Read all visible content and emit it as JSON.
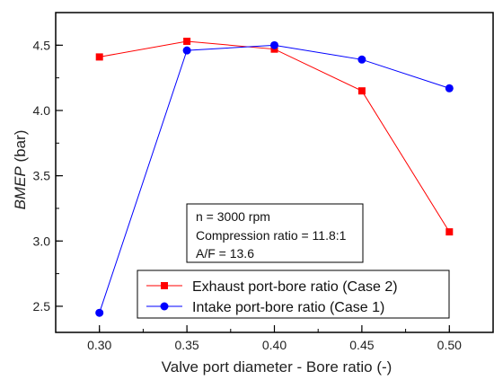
{
  "chart_data": {
    "type": "line",
    "xlabel": "Valve port diameter - Bore ratio (-)",
    "ylabel_italic": "BMEP",
    "ylabel_unit": " (bar)",
    "xlim": [
      0.275,
      0.525
    ],
    "ylim": [
      2.3,
      4.75
    ],
    "x_ticks": [
      0.3,
      0.35,
      0.4,
      0.45,
      0.5
    ],
    "x_tick_labels": [
      "0.30",
      "0.35",
      "0.40",
      "0.45",
      "0.50"
    ],
    "y_ticks": [
      2.5,
      3.0,
      3.5,
      4.0,
      4.5
    ],
    "y_tick_labels": [
      "2.5",
      "3.0",
      "3.5",
      "4.0",
      "4.5"
    ],
    "grid": false,
    "legend_position": "bottom-right",
    "annotation": [
      "n = 3000 rpm",
      "Compression ratio = 11.8:1",
      "A/F = 13.6"
    ],
    "series": [
      {
        "name": "Exhaust port-bore ratio (Case 2)",
        "color": "#ff0000",
        "marker": "square",
        "x": [
          0.3,
          0.35,
          0.4,
          0.45,
          0.5
        ],
        "y": [
          4.41,
          4.53,
          4.47,
          4.15,
          3.07
        ]
      },
      {
        "name": "Intake port-bore ratio (Case 1)",
        "color": "#0000ff",
        "marker": "circle",
        "x": [
          0.3,
          0.35,
          0.4,
          0.45,
          0.5
        ],
        "y": [
          2.45,
          4.46,
          4.5,
          4.39,
          4.17
        ]
      }
    ]
  }
}
